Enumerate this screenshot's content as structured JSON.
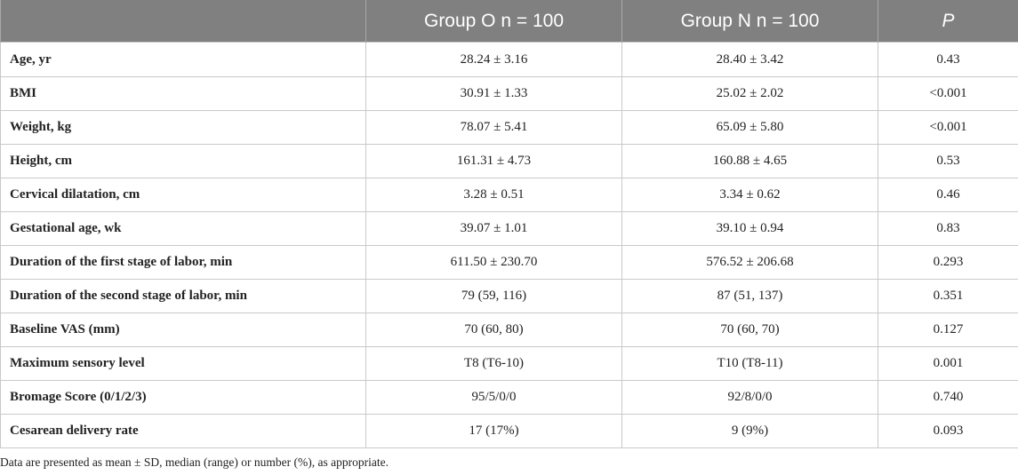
{
  "table": {
    "headers": {
      "col1": "",
      "group_o": "Group O n = 100",
      "group_n": "Group N n = 100",
      "p": "P"
    },
    "rows": [
      {
        "label": "Age, yr",
        "group_o": "28.24 ± 3.16",
        "group_n": "28.40 ± 3.42",
        "p": "0.43"
      },
      {
        "label": "BMI",
        "group_o": "30.91 ± 1.33",
        "group_n": "25.02 ± 2.02",
        "p": "<0.001"
      },
      {
        "label": "Weight, kg",
        "group_o": "78.07 ± 5.41",
        "group_n": "65.09 ± 5.80",
        "p": "<0.001"
      },
      {
        "label": "Height, cm",
        "group_o": "161.31 ± 4.73",
        "group_n": "160.88 ± 4.65",
        "p": "0.53"
      },
      {
        "label": "Cervical dilatation, cm",
        "group_o": "3.28 ± 0.51",
        "group_n": "3.34 ± 0.62",
        "p": "0.46"
      },
      {
        "label": "Gestational age, wk",
        "group_o": "39.07 ± 1.01",
        "group_n": "39.10 ± 0.94",
        "p": "0.83"
      },
      {
        "label": "Duration of the first stage of labor, min",
        "group_o": "611.50 ± 230.70",
        "group_n": "576.52 ± 206.68",
        "p": "0.293"
      },
      {
        "label": "Duration of the second stage of labor, min",
        "group_o": "79 (59, 116)",
        "group_n": "87 (51, 137)",
        "p": "0.351"
      },
      {
        "label": "Baseline VAS (mm)",
        "group_o": "70 (60, 80)",
        "group_n": "70 (60, 70)",
        "p": "0.127"
      },
      {
        "label": "Maximum sensory level",
        "group_o": "T8 (T6-10)",
        "group_n": "T10 (T8-11)",
        "p": "0.001"
      },
      {
        "label": "Bromage Score (0/1/2/3)",
        "group_o": "95/5/0/0",
        "group_n": "92/8/0/0",
        "p": "0.740"
      },
      {
        "label": "Cesarean delivery rate",
        "group_o": "17 (17%)",
        "group_n": "9 (9%)",
        "p": "0.093"
      }
    ]
  },
  "footnote": "Data are presented as mean ± SD, median (range) or number (%), as appropriate.",
  "colors": {
    "header_bg": "#808080",
    "header_text": "#ffffff",
    "border": "#c9c9c9",
    "body_text": "#222222"
  }
}
